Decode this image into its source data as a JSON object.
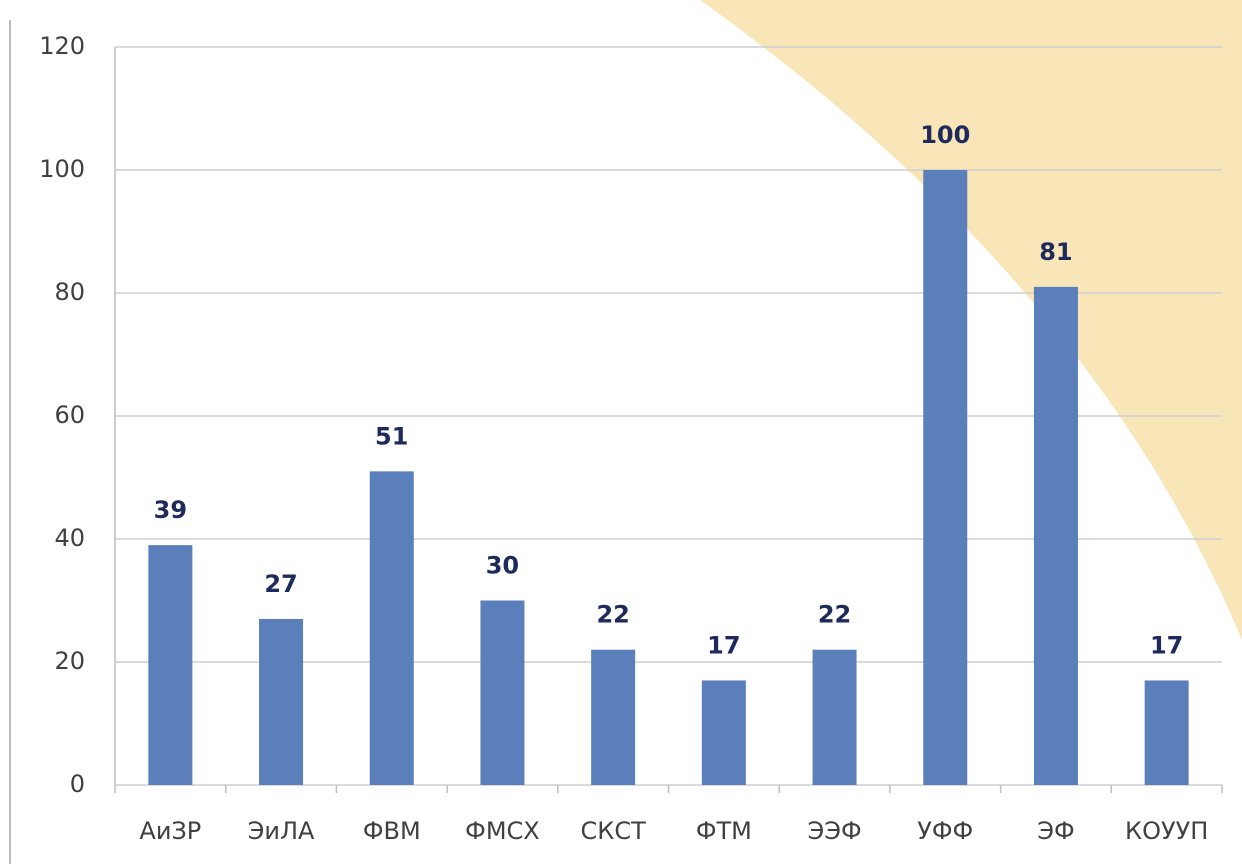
{
  "chart_data": {
    "type": "bar",
    "categories": [
      "АиЗР",
      "ЭиЛА",
      "ФВМ",
      "ФМСХ",
      "СКСТ",
      "ФТМ",
      "ЭЭФ",
      "УФФ",
      "ЭФ",
      "КОУУП"
    ],
    "values": [
      39,
      27,
      51,
      30,
      22,
      17,
      22,
      100,
      81,
      17
    ],
    "color": "#5b7fba",
    "ylim": [
      0,
      120
    ],
    "yticks": [
      0,
      20,
      40,
      60,
      80,
      100,
      120
    ],
    "grid": true
  }
}
